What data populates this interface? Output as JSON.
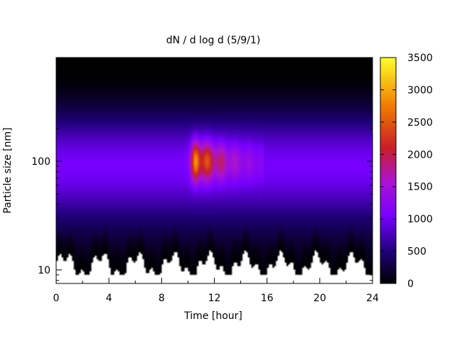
{
  "chart_data": {
    "type": "heatmap",
    "title": "dN / d log d (5/9/1)",
    "xlabel": "Time [hour]",
    "ylabel": "Particle size [nm]",
    "xlim": [
      0,
      24
    ],
    "ylim_nm": [
      7.5,
      900
    ],
    "y_scale": "log",
    "x_ticks": [
      0,
      4,
      8,
      12,
      16,
      20,
      24
    ],
    "x_tick_labels": [
      "0",
      "4",
      "8",
      "12",
      "16",
      "20",
      "24"
    ],
    "y_ticks": [
      10,
      100
    ],
    "y_tick_labels": [
      "10",
      "100"
    ],
    "colorbar": {
      "range": [
        0,
        3500
      ],
      "ticks": [
        0,
        500,
        1000,
        1500,
        2000,
        2500,
        3000,
        3500
      ],
      "tick_labels": [
        "0",
        "500",
        "1000",
        "1500",
        "2000",
        "2500",
        "3000",
        "3500"
      ],
      "palette": "black-blue-violet-red-orange-yellow"
    },
    "data_extent_nm": [
      9,
      850
    ],
    "features": {
      "background_level": 900,
      "mode_size_nm": 100,
      "peak_time_hour": 10.7,
      "peak_value": 3000,
      "burst_end_hour": 15.8
    }
  }
}
